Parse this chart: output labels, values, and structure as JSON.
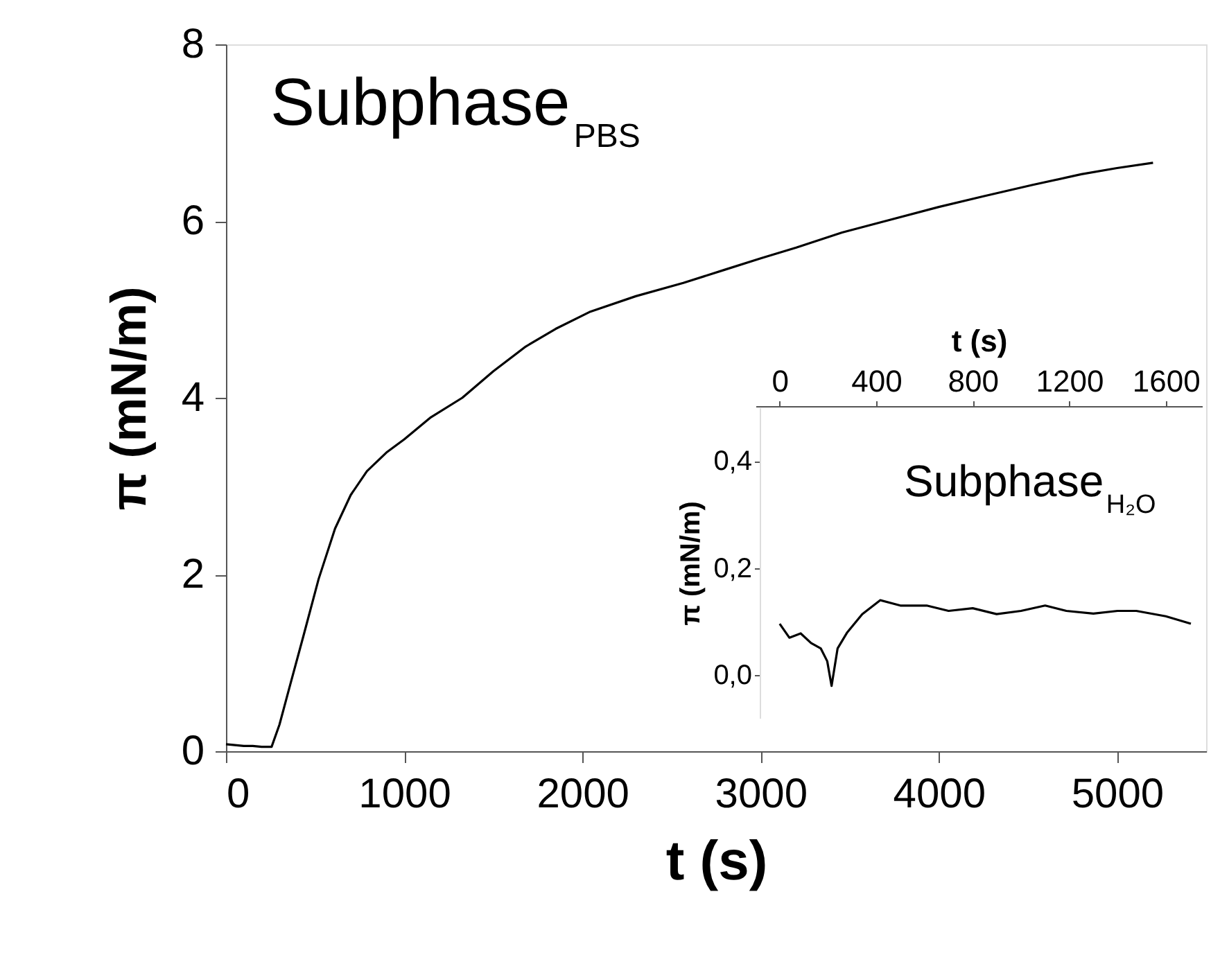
{
  "chart_data": [
    {
      "type": "line",
      "x": [
        0,
        50,
        100,
        150,
        200,
        256,
        300,
        360,
        434,
        520,
        612,
        700,
        791,
        900,
        1000,
        1150,
        1326,
        1500,
        1682,
        1850,
        2039,
        2300,
        2566,
        2800,
        3004,
        3200,
        3457,
        3700,
        4000,
        4250,
        4527,
        4800,
        5000,
        5202
      ],
      "series": [
        {
          "color": "#000000",
          "values": [
            0.08,
            0.07,
            0.06,
            0.06,
            0.05,
            0.05,
            0.3,
            0.75,
            1.3,
            1.95,
            2.52,
            2.9,
            3.17,
            3.38,
            3.53,
            3.78,
            4.0,
            4.3,
            4.58,
            4.78,
            4.97,
            5.15,
            5.3,
            5.45,
            5.58,
            5.7,
            5.87,
            6.0,
            6.16,
            6.28,
            6.41,
            6.53,
            6.6,
            6.66
          ]
        }
      ],
      "xlim": [
        0,
        5500
      ],
      "xticks": [
        0,
        1000,
        2000,
        3000,
        4000,
        5000
      ],
      "ylim": [
        0,
        8
      ],
      "yticks": [
        0,
        2,
        4,
        6,
        8
      ],
      "xlabel": "t (s)",
      "ylabel": "π (mN/m)",
      "annotations": [
        "Subphase$_{PBS}$"
      ],
      "grid": false
    },
    {
      "type": "line",
      "x": [
        0,
        40,
        87,
        130,
        170,
        197,
        215,
        240,
        280,
        342,
        417,
        500,
        609,
        700,
        800,
        899,
        1000,
        1100,
        1188,
        1300,
        1400,
        1478,
        1600,
        1704
      ],
      "series": [
        {
          "color": "#000000",
          "values": [
            0.096,
            0.07,
            0.078,
            0.06,
            0.05,
            0.026,
            -0.02,
            0.05,
            0.08,
            0.114,
            0.14,
            0.13,
            0.13,
            0.12,
            0.125,
            0.114,
            0.12,
            0.13,
            0.12,
            0.115,
            0.12,
            0.12,
            0.11,
            0.096
          ]
        }
      ],
      "xlim": [
        -100,
        1750
      ],
      "xticks": [
        0,
        400,
        800,
        1200,
        1600
      ],
      "xlabel": "t (s)",
      "ylim": [
        -0.08,
        0.5
      ],
      "yticks": [
        {
          "value": 0,
          "label": "0,0"
        },
        {
          "value": 0.2,
          "label": "0,2"
        },
        {
          "value": 0.4,
          "label": "0,4"
        }
      ],
      "ylabel": "π (mN/m)",
      "annotations": [
        "Subphase$_{H₂O}$"
      ],
      "grid": false
    }
  ]
}
